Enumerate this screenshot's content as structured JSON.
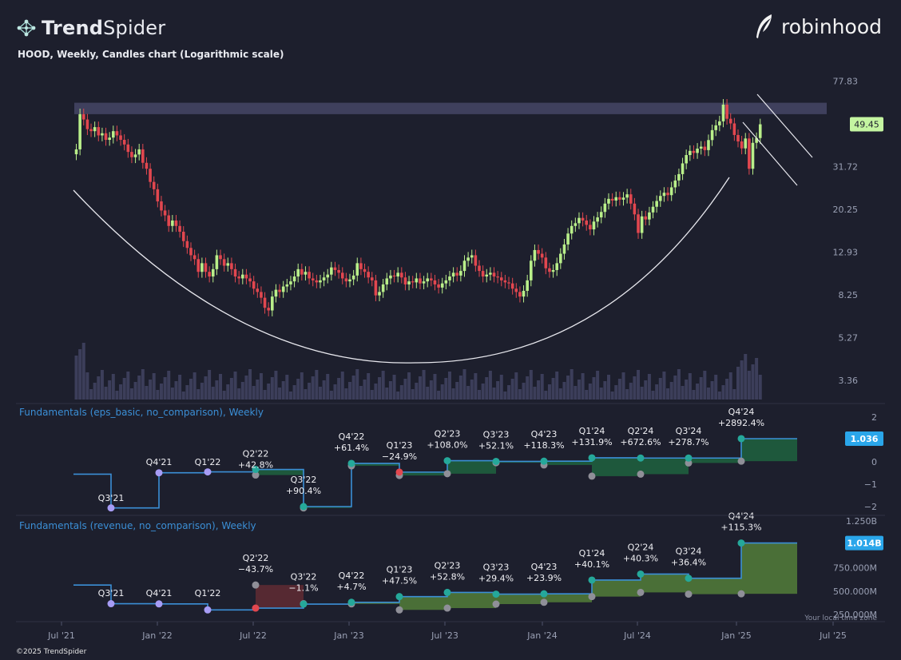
{
  "header": {
    "brand_bold": "Trend",
    "brand_light": "Spider",
    "partner_logo": "robinhood",
    "subtitle": "HOOD, Weekly, Candles chart (Logarithmic scale)",
    "copyright": "©2025 TrendSpider"
  },
  "icons": {
    "brand": "trendspider-network-icon",
    "partner": "robinhood-feather-icon"
  },
  "colors": {
    "background": "#1d1f2d",
    "up": "#b9ef8a",
    "down": "#e2474f",
    "eps_fill": "#1f5c3d",
    "rev_fill": "#4d7438",
    "rev_down_fill": "#5a2a33",
    "price_badge": "#c4f5a1",
    "value_badge": "#2aa6ea",
    "resistance_band": "#454766",
    "link_blue": "#3b8fd6"
  },
  "chart_data": [
    {
      "type": "candlestick",
      "title": "HOOD, Weekly, Candles chart (Logarithmic scale)",
      "scale": "log",
      "y_ticks": [
        "77.83",
        "49.45",
        "31.72",
        "20.25",
        "12.93",
        "8.25",
        "5.27",
        "3.36"
      ],
      "x_ticks": [
        "Jul '21",
        "Jan '22",
        "Jul '22",
        "Jan '23",
        "Jul '23",
        "Jan '24",
        "Jul '24",
        "Jan '25",
        "Jul '25"
      ],
      "last_price": "49.45",
      "ylim": [
        2.9,
        95
      ],
      "x_range": [
        "2021-05-20",
        "2025-07-20"
      ],
      "series_close_weekly": [
        [
          0,
          38
        ],
        [
          1,
          55
        ],
        [
          2,
          52
        ],
        [
          3,
          47
        ],
        [
          4,
          46
        ],
        [
          5,
          48
        ],
        [
          6,
          44
        ],
        [
          7,
          45
        ],
        [
          8,
          42
        ],
        [
          9,
          43
        ],
        [
          10,
          46
        ],
        [
          11,
          44
        ],
        [
          12,
          42
        ],
        [
          13,
          40
        ],
        [
          14,
          37
        ],
        [
          15,
          35
        ],
        [
          16,
          36
        ],
        [
          17,
          38
        ],
        [
          18,
          33
        ],
        [
          19,
          31
        ],
        [
          20,
          27
        ],
        [
          21,
          25
        ],
        [
          22,
          22
        ],
        [
          23,
          20
        ],
        [
          24,
          19
        ],
        [
          25,
          17
        ],
        [
          26,
          18
        ],
        [
          27,
          17
        ],
        [
          28,
          16
        ],
        [
          29,
          14.5
        ],
        [
          30,
          13.5
        ],
        [
          31,
          12.5
        ],
        [
          32,
          12
        ],
        [
          33,
          10.5
        ],
        [
          34,
          11.5
        ],
        [
          35,
          10.5
        ],
        [
          36,
          10
        ],
        [
          37,
          10.8
        ],
        [
          38,
          12.5
        ],
        [
          39,
          12
        ],
        [
          40,
          11.2
        ],
        [
          41,
          11.5
        ],
        [
          42,
          10.8
        ],
        [
          43,
          10
        ],
        [
          44,
          9.8
        ],
        [
          45,
          10.2
        ],
        [
          46,
          9.8
        ],
        [
          47,
          9.5
        ],
        [
          48,
          8.8
        ],
        [
          49,
          8.5
        ],
        [
          50,
          8
        ],
        [
          51,
          7.2
        ],
        [
          52,
          7
        ],
        [
          53,
          8.1
        ],
        [
          54,
          8.7
        ],
        [
          55,
          8.5
        ],
        [
          56,
          9
        ],
        [
          57,
          9.2
        ],
        [
          58,
          9.5
        ],
        [
          59,
          10
        ],
        [
          60,
          10.8
        ],
        [
          61,
          10.2
        ],
        [
          62,
          10.5
        ],
        [
          63,
          9.8
        ],
        [
          64,
          9.6
        ],
        [
          65,
          9.4
        ],
        [
          66,
          9.6
        ],
        [
          67,
          9.9
        ],
        [
          68,
          10.2
        ],
        [
          69,
          11
        ],
        [
          70,
          10.7
        ],
        [
          71,
          10.4
        ],
        [
          72,
          9.8
        ],
        [
          73,
          9.5
        ],
        [
          74,
          9.7
        ],
        [
          75,
          10.1
        ],
        [
          76,
          11.5
        ],
        [
          77,
          10.8
        ],
        [
          78,
          10.5
        ],
        [
          79,
          9.9
        ],
        [
          80,
          9.6
        ],
        [
          81,
          8.2
        ],
        [
          82,
          8.5
        ],
        [
          83,
          9.2
        ],
        [
          84,
          9.8
        ],
        [
          85,
          10.1
        ],
        [
          86,
          10
        ],
        [
          87,
          10.4
        ],
        [
          88,
          9.9
        ],
        [
          89,
          9.2
        ],
        [
          90,
          9.5
        ],
        [
          91,
          9.4
        ],
        [
          92,
          9.8
        ],
        [
          93,
          9.3
        ],
        [
          94,
          9.5
        ],
        [
          95,
          9.8
        ],
        [
          96,
          9.6
        ],
        [
          97,
          9.2
        ],
        [
          98,
          8.9
        ],
        [
          99,
          9.3
        ],
        [
          100,
          9.6
        ],
        [
          101,
          10
        ],
        [
          102,
          10.4
        ],
        [
          103,
          10.1
        ],
        [
          104,
          10.6
        ],
        [
          105,
          11.8
        ],
        [
          106,
          12.2
        ],
        [
          107,
          12.5
        ],
        [
          108,
          11.2
        ],
        [
          109,
          10.6
        ],
        [
          110,
          10
        ],
        [
          111,
          10.2
        ],
        [
          112,
          10.4
        ],
        [
          113,
          10
        ],
        [
          114,
          9.9
        ],
        [
          115,
          9.6
        ],
        [
          116,
          9.4
        ],
        [
          117,
          9.3
        ],
        [
          118,
          8.8
        ],
        [
          119,
          8.5
        ],
        [
          120,
          8.1
        ],
        [
          121,
          8.6
        ],
        [
          122,
          9.6
        ],
        [
          123,
          11.8
        ],
        [
          124,
          13.2
        ],
        [
          125,
          12.7
        ],
        [
          126,
          12.2
        ],
        [
          127,
          10.9
        ],
        [
          128,
          10.5
        ],
        [
          129,
          10.7
        ],
        [
          130,
          11.5
        ],
        [
          131,
          12.7
        ],
        [
          132,
          14
        ],
        [
          133,
          15.7
        ],
        [
          134,
          17
        ],
        [
          135,
          17.5
        ],
        [
          136,
          18.5
        ],
        [
          137,
          18
        ],
        [
          138,
          17.2
        ],
        [
          139,
          16.4
        ],
        [
          140,
          17.8
        ],
        [
          141,
          18.6
        ],
        [
          142,
          19.7
        ],
        [
          143,
          21.5
        ],
        [
          144,
          22.6
        ],
        [
          145,
          22.2
        ],
        [
          146,
          23
        ],
        [
          147,
          22.4
        ],
        [
          148,
          22.9
        ],
        [
          149,
          23.7
        ],
        [
          150,
          21.5
        ],
        [
          151,
          19.2
        ],
        [
          152,
          15.8
        ],
        [
          153,
          18.8
        ],
        [
          154,
          18.2
        ],
        [
          155,
          19.6
        ],
        [
          156,
          20.8
        ],
        [
          157,
          22.1
        ],
        [
          158,
          23.3
        ],
        [
          159,
          24.1
        ],
        [
          160,
          23.5
        ],
        [
          161,
          25.5
        ],
        [
          162,
          27.4
        ],
        [
          163,
          29.3
        ],
        [
          164,
          32.8
        ],
        [
          165,
          35.8
        ],
        [
          166,
          37.4
        ],
        [
          167,
          36.6
        ],
        [
          168,
          38.3
        ],
        [
          169,
          39.1
        ],
        [
          170,
          37.7
        ],
        [
          171,
          41.9
        ],
        [
          172,
          46.5
        ],
        [
          173,
          48.9
        ],
        [
          174,
          51
        ],
        [
          175,
          60.8
        ],
        [
          176,
          52.4
        ],
        [
          177,
          49.9
        ],
        [
          178,
          44.2
        ],
        [
          179,
          41.3
        ],
        [
          180,
          38.4
        ],
        [
          181,
          42.6
        ],
        [
          182,
          31
        ],
        [
          183,
          40.7
        ],
        [
          184,
          42.8
        ],
        [
          185,
          49.45
        ]
      ],
      "annotations": [
        "Horizontal resistance band near 55–62",
        "Rounded bottom curve (cup) from mid-2021 to early 2025",
        "Descending channel in early 2025"
      ]
    },
    {
      "type": "step",
      "title": "Fundamentals (eps_basic, no_comparison), Weekly",
      "ylim": [
        -2.1,
        2.2
      ],
      "y_ticks": [
        "2",
        "0",
        "−1",
        "−2"
      ],
      "last_value": "1.036",
      "quarters": [
        "Q3'21",
        "Q4'21",
        "Q1'22",
        "Q2'22",
        "Q3'22",
        "Q4'22",
        "Q1'23",
        "Q2'23",
        "Q3'23",
        "Q4'23",
        "Q1'24",
        "Q2'24",
        "Q3'24",
        "Q4'24"
      ],
      "values": [
        -2.06,
        -0.49,
        -0.45,
        -0.34,
        -2.0,
        -0.07,
        -0.46,
        0.05,
        0.02,
        0.03,
        0.18,
        0.17,
        0.17,
        1.036
      ],
      "comparison_values": [
        null,
        null,
        null,
        -0.59,
        -2.06,
        -0.18,
        -0.61,
        -0.53,
        -0.04,
        -0.14,
        -0.64,
        -0.55,
        -0.05,
        0.03
      ],
      "changes": [
        "",
        "",
        "",
        "+42.8%",
        "+90.4%",
        "+61.4%",
        "−24.9%",
        "+108.0%",
        "+52.1%",
        "+118.3%",
        "+131.9%",
        "+672.6%",
        "+278.7%",
        "+2892.4%"
      ]
    },
    {
      "type": "step",
      "title": "Fundamentals (revenue, no_comparison), Weekly",
      "ylim": [
        200000000,
        1250000000
      ],
      "y_ticks": [
        "1.250B",
        "750.000M",
        "500.000M",
        "250.000M"
      ],
      "last_value": "1.014B",
      "quarters": [
        "Q3'21",
        "Q4'21",
        "Q1'22",
        "Q2'22",
        "Q3'22",
        "Q4'22",
        "Q1'23",
        "Q2'23",
        "Q3'23",
        "Q4'23",
        "Q1'24",
        "Q2'24",
        "Q3'24",
        "Q4'24"
      ],
      "values": [
        365000000,
        363000000,
        299000000,
        318000000,
        361000000,
        380000000,
        441000000,
        486000000,
        467000000,
        471000000,
        618000000,
        682000000,
        637000000,
        1014000000
      ],
      "comparison_values": [
        null,
        null,
        null,
        565000000,
        365000000,
        363000000,
        299000000,
        318000000,
        361000000,
        380000000,
        441000000,
        486000000,
        467000000,
        471000000
      ],
      "changes": [
        "",
        "",
        "",
        "−43.7%",
        "−1.1%",
        "+4.7%",
        "+47.5%",
        "+52.8%",
        "+29.4%",
        "+23.9%",
        "+40.1%",
        "+40.3%",
        "+36.4%",
        "+115.3%"
      ]
    }
  ],
  "footer": {
    "timezone_note": "Your local time zone"
  }
}
